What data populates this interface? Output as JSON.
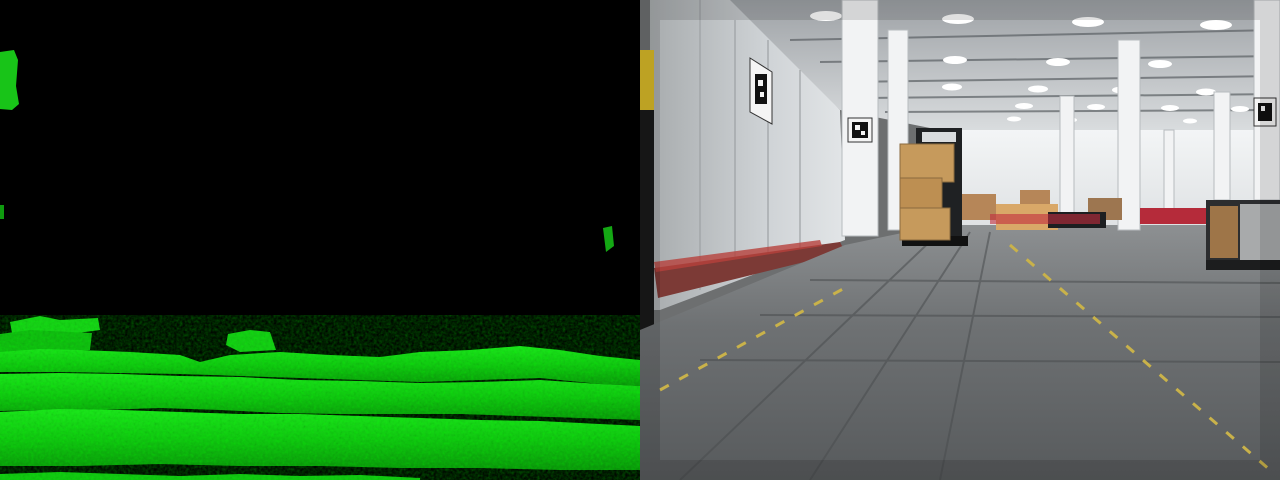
{
  "views": [
    {
      "id": "depth",
      "description_name": "depth-view",
      "background": "#000000",
      "colormap_color": "#14d814"
    },
    {
      "id": "camera",
      "description_name": "camera-view",
      "scene": "warehouse"
    }
  ],
  "colors": {
    "depth_bright": "#1fe51f",
    "depth_mid": "#10b810",
    "depth_dark": "#0a7a0a",
    "ceiling": "#e8eaec",
    "wall": "#c9cdd0",
    "pillar": "#f2f3f4",
    "floor": "#5e6163",
    "floor_line": "#c9b24a",
    "box": "#c69a5c",
    "cart": "#202224",
    "marker_dark": "#111111",
    "marker_light": "#f4f4f4"
  }
}
